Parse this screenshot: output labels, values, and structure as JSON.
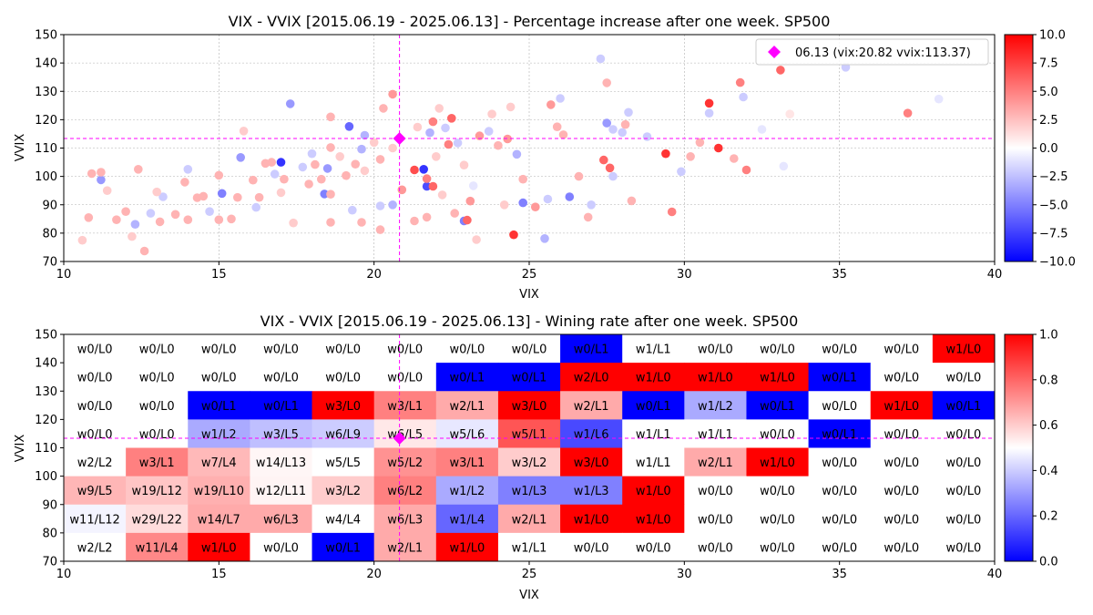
{
  "colors": {
    "diverging_low": "#0000ff",
    "diverging_mid": "#ffffff",
    "diverging_high": "#ff0000",
    "current_marker": "#ff00ff",
    "grid": "#b0b0b0"
  },
  "chart_data": [
    {
      "type": "scatter",
      "title": "VIX - VVIX [2015.06.19 - 2025.06.13]  - Percentage increase after one week. SP500",
      "xlabel": "VIX",
      "ylabel": "VVIX",
      "xlim": [
        10,
        40
      ],
      "ylim": [
        70,
        150
      ],
      "xticks": [
        "10",
        "15",
        "20",
        "25",
        "30",
        "35",
        "40"
      ],
      "yticks": [
        "70",
        "80",
        "90",
        "100",
        "110",
        "120",
        "130",
        "140",
        "150"
      ],
      "grid": true,
      "colormap": "bwr",
      "colorbar": {
        "range": [
          -10,
          10
        ],
        "ticks": [
          "10.0",
          "7.5",
          "5.0",
          "2.5",
          "0.0",
          "−2.5",
          "−5.0",
          "−7.5",
          "−10.0"
        ]
      },
      "current_point": {
        "label": "06.13 (vix:20.82 vvix:113.37)",
        "x": 20.82,
        "y": 113.37
      },
      "legend_position": "top-right",
      "points_note": "c = one-week % change of SP500",
      "points": [
        [
          17.0,
          105,
          -8
        ],
        [
          21.6,
          102.5,
          -8
        ],
        [
          21.7,
          96.5,
          -7
        ],
        [
          19.2,
          117.6,
          -6
        ],
        [
          18.4,
          93.8,
          -5
        ],
        [
          26.3,
          92.8,
          -5
        ],
        [
          15.1,
          94.0,
          -5
        ],
        [
          22.9,
          84.3,
          -5
        ],
        [
          24.8,
          90.7,
          -5
        ],
        [
          17.3,
          125.6,
          -4
        ],
        [
          18.5,
          102.8,
          -4
        ],
        [
          11.2,
          98.8,
          -4
        ],
        [
          15.7,
          106.7,
          -4
        ],
        [
          27.5,
          118.8,
          -4
        ],
        [
          25.5,
          78.1,
          -3
        ],
        [
          21.8,
          115.4,
          -3
        ],
        [
          19.7,
          114.5,
          -3
        ],
        [
          19.6,
          109.6,
          -3
        ],
        [
          20.6,
          90.0,
          -3
        ],
        [
          20.2,
          89.6,
          -2
        ],
        [
          22.3,
          117.1,
          -2
        ],
        [
          26.0,
          127.5,
          -2
        ],
        [
          27.7,
          100.0,
          -2
        ],
        [
          28.2,
          122.6,
          -2
        ],
        [
          29.9,
          101.7,
          -2
        ],
        [
          30.8,
          122.3,
          -2
        ],
        [
          31.9,
          128.0,
          -2
        ],
        [
          32.5,
          116.6,
          -1
        ],
        [
          33.2,
          103.6,
          -1
        ],
        [
          35.2,
          138.5,
          -2
        ],
        [
          38.2,
          127.3,
          -1
        ],
        [
          27.3,
          141.5,
          -2
        ],
        [
          12.3,
          83.1,
          -3
        ],
        [
          12.8,
          87.0,
          -2
        ],
        [
          13.2,
          92.8,
          -2
        ],
        [
          14.0,
          102.5,
          -2
        ],
        [
          14.7,
          87.6,
          -2
        ],
        [
          16.2,
          89.1,
          -2
        ],
        [
          16.8,
          100.8,
          -2
        ],
        [
          17.7,
          103.3,
          -2
        ],
        [
          18.0,
          108.0,
          -2
        ],
        [
          19.3,
          88.1,
          -2
        ],
        [
          22.7,
          111.8,
          -2
        ],
        [
          23.2,
          96.7,
          -1
        ],
        [
          23.7,
          115.9,
          -2
        ],
        [
          24.6,
          107.8,
          -3
        ],
        [
          25.6,
          92.0,
          -2
        ],
        [
          27.0,
          90.0,
          -2
        ],
        [
          27.7,
          116.6,
          -2
        ],
        [
          28.0,
          115.5,
          -2
        ],
        [
          28.8,
          114.0,
          -2
        ],
        [
          24.5,
          79.4,
          8
        ],
        [
          29.4,
          108.0,
          8
        ],
        [
          30.8,
          125.8,
          8
        ],
        [
          31.1,
          110.0,
          8
        ],
        [
          21.3,
          102.3,
          7
        ],
        [
          21.9,
          96.5,
          6
        ],
        [
          22.5,
          120.5,
          6
        ],
        [
          23.0,
          84.6,
          6
        ],
        [
          27.4,
          105.8,
          6
        ],
        [
          27.6,
          103.0,
          6
        ],
        [
          29.6,
          87.5,
          5
        ],
        [
          32.0,
          102.3,
          5
        ],
        [
          33.1,
          137.5,
          6
        ],
        [
          37.2,
          122.3,
          5
        ],
        [
          31.8,
          133.1,
          5
        ],
        [
          21.7,
          99.2,
          5
        ],
        [
          21.9,
          119.3,
          5
        ],
        [
          22.4,
          111.3,
          5
        ],
        [
          23.4,
          114.3,
          4
        ],
        [
          22.6,
          87.0,
          3
        ],
        [
          23.1,
          91.3,
          4
        ],
        [
          20.6,
          129.0,
          4
        ],
        [
          20.9,
          95.3,
          4
        ],
        [
          21.3,
          84.3,
          3
        ],
        [
          21.7,
          85.6,
          3
        ],
        [
          24.3,
          113.2,
          4
        ],
        [
          25.2,
          89.2,
          4
        ],
        [
          25.7,
          125.3,
          4
        ],
        [
          26.1,
          114.7,
          3
        ],
        [
          26.6,
          100.0,
          3
        ],
        [
          26.9,
          85.6,
          3
        ],
        [
          25.9,
          117.5,
          3
        ],
        [
          24.0,
          110.9,
          3
        ],
        [
          24.8,
          99.0,
          3
        ],
        [
          27.5,
          133.0,
          3
        ],
        [
          28.1,
          118.3,
          3
        ],
        [
          28.3,
          91.4,
          3
        ],
        [
          30.2,
          107.0,
          3
        ],
        [
          30.5,
          112.0,
          3
        ],
        [
          31.6,
          106.3,
          3
        ],
        [
          33.4,
          122.0,
          1
        ],
        [
          23.3,
          77.7,
          2
        ],
        [
          22.1,
          124.0,
          2
        ],
        [
          22.0,
          107.0,
          2
        ],
        [
          21.4,
          117.4,
          2
        ],
        [
          20.2,
          106.0,
          3
        ],
        [
          20.3,
          124.0,
          3
        ],
        [
          20.2,
          81.2,
          3
        ],
        [
          19.6,
          83.8,
          3
        ],
        [
          18.6,
          83.8,
          3
        ],
        [
          18.6,
          110.2,
          3
        ],
        [
          18.1,
          104.2,
          3
        ],
        [
          18.3,
          99.0,
          3
        ],
        [
          18.6,
          93.7,
          3
        ],
        [
          19.1,
          100.3,
          3
        ],
        [
          19.4,
          104.3,
          3
        ],
        [
          18.6,
          121.0,
          3
        ],
        [
          17.9,
          97.3,
          3
        ],
        [
          17.1,
          99.0,
          3
        ],
        [
          16.7,
          105.0,
          3
        ],
        [
          16.3,
          92.6,
          3
        ],
        [
          16.1,
          98.7,
          3
        ],
        [
          15.6,
          92.6,
          3
        ],
        [
          15.4,
          85.0,
          3
        ],
        [
          15.0,
          84.7,
          3
        ],
        [
          14.5,
          93.0,
          3
        ],
        [
          14.0,
          84.7,
          3
        ],
        [
          13.9,
          98.0,
          3
        ],
        [
          13.6,
          86.6,
          3
        ],
        [
          13.1,
          84.0,
          3
        ],
        [
          12.6,
          73.7,
          3
        ],
        [
          12.4,
          102.5,
          3
        ],
        [
          12.0,
          87.6,
          3
        ],
        [
          11.7,
          84.7,
          3
        ],
        [
          11.2,
          101.5,
          3
        ],
        [
          10.9,
          101.0,
          3
        ],
        [
          10.8,
          85.5,
          3
        ],
        [
          10.6,
          77.5,
          2
        ],
        [
          11.4,
          95.0,
          2
        ],
        [
          12.2,
          78.8,
          2
        ],
        [
          13.0,
          94.5,
          2
        ],
        [
          14.3,
          92.5,
          3
        ],
        [
          15.0,
          100.4,
          3
        ],
        [
          15.8,
          116.0,
          2
        ],
        [
          16.5,
          104.6,
          3
        ],
        [
          17.0,
          94.3,
          2
        ],
        [
          17.4,
          83.6,
          2
        ],
        [
          18.9,
          107.0,
          2
        ],
        [
          19.7,
          102.0,
          2
        ],
        [
          20.0,
          112.0,
          2
        ],
        [
          23.8,
          122.0,
          2
        ],
        [
          24.4,
          124.5,
          2
        ],
        [
          24.2,
          90.0,
          2
        ],
        [
          22.9,
          104.0,
          2
        ],
        [
          22.2,
          93.5,
          2
        ],
        [
          20.6,
          110.0,
          2
        ]
      ]
    },
    {
      "type": "heatmap",
      "title": "VIX - VVIX [2015.06.19 - 2025.06.13]  - Wining rate after one week. SP500",
      "xlabel": "VIX",
      "ylabel": "VVIX",
      "xlim": [
        10,
        40
      ],
      "ylim": [
        70,
        150
      ],
      "xticks": [
        "10",
        "15",
        "20",
        "25",
        "30",
        "35",
        "40"
      ],
      "yticks": [
        "70",
        "80",
        "90",
        "100",
        "110",
        "120",
        "130",
        "140",
        "150"
      ],
      "x_bin_width": 2,
      "y_bin_width": 10,
      "colormap": "bwr",
      "colorbar": {
        "range": [
          0,
          1
        ],
        "ticks": [
          "1.0",
          "0.8",
          "0.6",
          "0.4",
          "0.2",
          "0.0"
        ]
      },
      "current_point": {
        "x": 20.82,
        "y": 113.37
      },
      "rows_top_to_bottom": [
        [
          "w0/L0",
          "w0/L0",
          "w0/L0",
          "w0/L0",
          "w0/L0",
          "w0/L0",
          "w0/L0",
          "w0/L0",
          "w0/L1",
          "w1/L1",
          "w0/L0",
          "w0/L0",
          "w0/L0",
          "w0/L0",
          "w1/L0"
        ],
        [
          "w0/L0",
          "w0/L0",
          "w0/L0",
          "w0/L0",
          "w0/L0",
          "w0/L0",
          "w0/L1",
          "w0/L1",
          "w2/L0",
          "w1/L0",
          "w1/L0",
          "w1/L0",
          "w0/L1",
          "w0/L0",
          "w0/L0"
        ],
        [
          "w0/L0",
          "w0/L0",
          "w0/L1",
          "w0/L1",
          "w3/L0",
          "w3/L1",
          "w2/L1",
          "w3/L0",
          "w2/L1",
          "w0/L1",
          "w1/L2",
          "w0/L1",
          "w0/L0",
          "w1/L0",
          "w0/L1"
        ],
        [
          "w0/L0",
          "w0/L0",
          "w1/L2",
          "w3/L5",
          "w6/L9",
          "w6/L5",
          "w5/L6",
          "w5/L1",
          "w1/L6",
          "w1/L1",
          "w1/L1",
          "w0/L0",
          "w0/L1",
          "w0/L0",
          "w0/L0"
        ],
        [
          "w2/L2",
          "w3/L1",
          "w7/L4",
          "w14/L13",
          "w5/L5",
          "w5/L2",
          "w3/L1",
          "w3/L2",
          "w3/L0",
          "w1/L1",
          "w2/L1",
          "w1/L0",
          "w0/L0",
          "w0/L0",
          "w0/L0"
        ],
        [
          "w9/L5",
          "w19/L12",
          "w19/L10",
          "w12/L11",
          "w3/L2",
          "w6/L2",
          "w1/L2",
          "w1/L3",
          "w1/L3",
          "w1/L0",
          "w0/L0",
          "w0/L0",
          "w0/L0",
          "w0/L0",
          "w0/L0"
        ],
        [
          "w11/L12",
          "w29/L22",
          "w14/L7",
          "w6/L3",
          "w4/L4",
          "w6/L3",
          "w1/L4",
          "w2/L1",
          "w1/L0",
          "w1/L0",
          "w0/L0",
          "w0/L0",
          "w0/L0",
          "w0/L0",
          "w0/L0"
        ],
        [
          "w2/L2",
          "w11/L4",
          "w1/L0",
          "w0/L0",
          "w0/L1",
          "w2/L1",
          "w1/L0",
          "w1/L1",
          "w0/L0",
          "w0/L0",
          "w0/L0",
          "w0/L0",
          "w0/L0",
          "w0/L0",
          "w0/L0"
        ]
      ]
    }
  ]
}
